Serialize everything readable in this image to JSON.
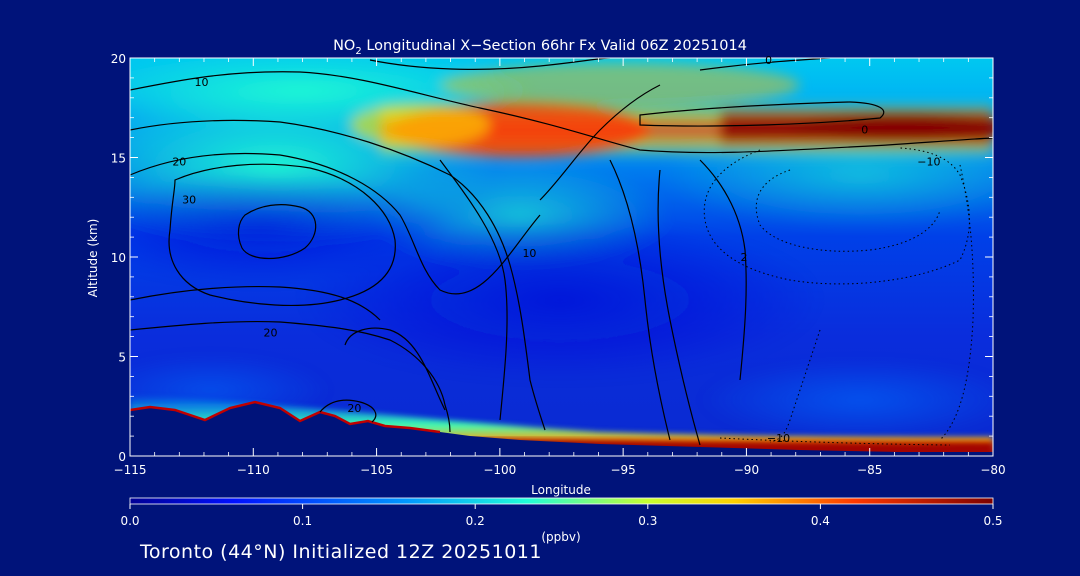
{
  "chart_data": {
    "type": "heatmap",
    "title": "NO",
    "title_sub": "2",
    "title_rest": " Longitudinal X−Section 66hr  Fx Valid 06Z 20251014",
    "xlabel": "Longitude",
    "ylabel": "Altitude (km)",
    "xlim": [
      -115,
      -80
    ],
    "ylim": [
      0,
      20
    ],
    "x_ticks": [
      -115,
      -110,
      -105,
      -100,
      -95,
      -90,
      -85,
      -80
    ],
    "x_tick_labels": [
      "−115",
      "−110",
      "−105",
      "−100",
      "−95",
      "−90",
      "−85",
      "−80"
    ],
    "y_ticks": [
      0,
      5,
      10,
      15,
      20
    ],
    "y_tick_labels": [
      "0",
      "5",
      "10",
      "15",
      "20"
    ],
    "colorbar": {
      "label": "(ppbv)",
      "min": 0.0,
      "max": 0.5,
      "ticks": [
        0.0,
        0.1,
        0.2,
        0.3,
        0.4,
        0.5
      ],
      "tick_labels": [
        "0.0",
        "0.1",
        "0.2",
        "0.3",
        "0.4",
        "0.5"
      ]
    },
    "contour_labels": [
      {
        "text": "10",
        "lon": -112.1,
        "alt": 18.6
      },
      {
        "text": "20",
        "lon": -113.0,
        "alt": 14.6
      },
      {
        "text": "30",
        "lon": -112.6,
        "alt": 12.7
      },
      {
        "text": "20",
        "lon": -109.3,
        "alt": 6.0
      },
      {
        "text": "20",
        "lon": -105.9,
        "alt": 2.2
      },
      {
        "text": "10",
        "lon": -98.8,
        "alt": 10.0
      },
      {
        "text": "0",
        "lon": -89.1,
        "alt": 19.7
      },
      {
        "text": "0",
        "lon": -85.2,
        "alt": 16.2
      },
      {
        "text": "2",
        "lon": -90.1,
        "alt": 9.8
      },
      {
        "text": "−10",
        "lon": -82.6,
        "alt": 14.6
      },
      {
        "text": "−10",
        "lon": -88.7,
        "alt": 0.7
      }
    ]
  },
  "footer": {
    "text": "Toronto (44°N) Initialized 12Z 20251011"
  }
}
